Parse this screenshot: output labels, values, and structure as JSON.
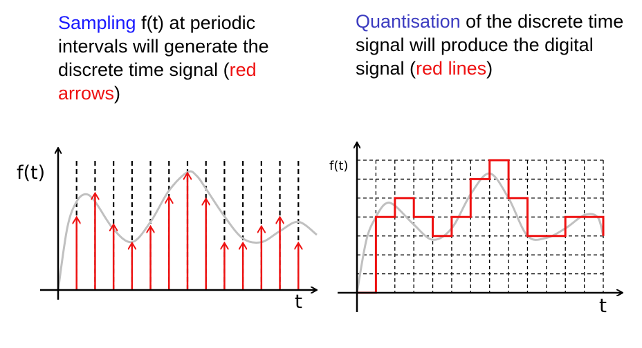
{
  "colors": {
    "blue": "#1a1aff",
    "red": "#ee1111",
    "purple": "#3c3cc0",
    "curve": "#c0c0c0",
    "text": "#000000"
  },
  "sampling": {
    "caption": {
      "part1": "Sampling",
      "part2": " f(t) at periodic intervals will generate the discrete time signal (",
      "part3": "red arrows",
      "part4": ")"
    },
    "y_label": "f(t)",
    "x_label": "t"
  },
  "quantisation": {
    "caption": {
      "part1": "Quantisation",
      "part2": " of the discrete time signal will produce the digital signal (",
      "part3": "red lines",
      "part4": ")"
    },
    "y_label": "f(t)",
    "x_label": "t"
  },
  "chart_data": [
    {
      "type": "line",
      "title": "",
      "xlabel": "t",
      "ylabel": "f(t)",
      "xlim": [
        0,
        14
      ],
      "ylim": [
        0,
        7.2
      ],
      "grid": false,
      "series": [
        {
          "curve": [
            [
              0,
              0
            ],
            [
              0.5,
              3.4
            ],
            [
              1,
              4.8
            ],
            [
              1.5,
              5.2
            ],
            [
              2,
              4.8
            ],
            [
              3,
              3.3
            ],
            [
              4,
              2.6
            ],
            [
              5,
              3.7
            ],
            [
              6,
              5.4
            ],
            [
              7,
              6.4
            ],
            [
              7.5,
              6.2
            ],
            [
              8,
              5.5
            ],
            [
              9,
              4
            ],
            [
              10,
              2.8
            ],
            [
              11,
              2.6
            ],
            [
              12,
              3.2
            ],
            [
              13,
              3.7
            ],
            [
              14,
              3.0
            ]
          ],
          "samples": [
            {
              "x": 1,
              "y": 4.0
            },
            {
              "x": 2,
              "y": 5.3
            },
            {
              "x": 3,
              "y": 3.6
            },
            {
              "x": 4,
              "y": 2.6
            },
            {
              "x": 5,
              "y": 3.5
            },
            {
              "x": 6,
              "y": 5.1
            },
            {
              "x": 7,
              "y": 6.4
            },
            {
              "x": 8,
              "y": 5.0
            },
            {
              "x": 9,
              "y": 2.6
            },
            {
              "x": 10,
              "y": 2.6
            },
            {
              "x": 11,
              "y": 3.5
            },
            {
              "x": 12,
              "y": 4.0
            },
            {
              "x": 13,
              "y": 2.6
            }
          ]
        }
      ]
    },
    {
      "type": "line",
      "title": "",
      "xlabel": "t",
      "ylabel": "f(t)",
      "xlim": [
        0,
        13
      ],
      "ylim": [
        0,
        7
      ],
      "grid": true,
      "series": [
        {
          "curve": [
            [
              0,
              0
            ],
            [
              0.5,
              2.8
            ],
            [
              1,
              4.0
            ],
            [
              1.5,
              4.7
            ],
            [
              2,
              4.6
            ],
            [
              3,
              3.6
            ],
            [
              4,
              2.8
            ],
            [
              5,
              3.4
            ],
            [
              6,
              5.2
            ],
            [
              7,
              6.3
            ],
            [
              8,
              5.0
            ],
            [
              9,
              3.0
            ],
            [
              10,
              2.9
            ],
            [
              11,
              3.4
            ],
            [
              12,
              4.1
            ],
            [
              12.7,
              4.0
            ],
            [
              13,
              3.0
            ]
          ],
          "steps": [
            {
              "x0": 0,
              "x1": 1,
              "y": 0
            },
            {
              "x0": 1,
              "x1": 2,
              "y": 4
            },
            {
              "x0": 2,
              "x1": 3,
              "y": 5
            },
            {
              "x0": 3,
              "x1": 4,
              "y": 4
            },
            {
              "x0": 4,
              "x1": 5,
              "y": 3
            },
            {
              "x0": 5,
              "x1": 6,
              "y": 4
            },
            {
              "x0": 6,
              "x1": 7,
              "y": 6
            },
            {
              "x0": 7,
              "x1": 8,
              "y": 7
            },
            {
              "x0": 8,
              "x1": 9,
              "y": 5
            },
            {
              "x0": 9,
              "x1": 10,
              "y": 3
            },
            {
              "x0": 10,
              "x1": 11,
              "y": 3
            },
            {
              "x0": 11,
              "x1": 13,
              "y": 4
            }
          ]
        }
      ]
    }
  ]
}
